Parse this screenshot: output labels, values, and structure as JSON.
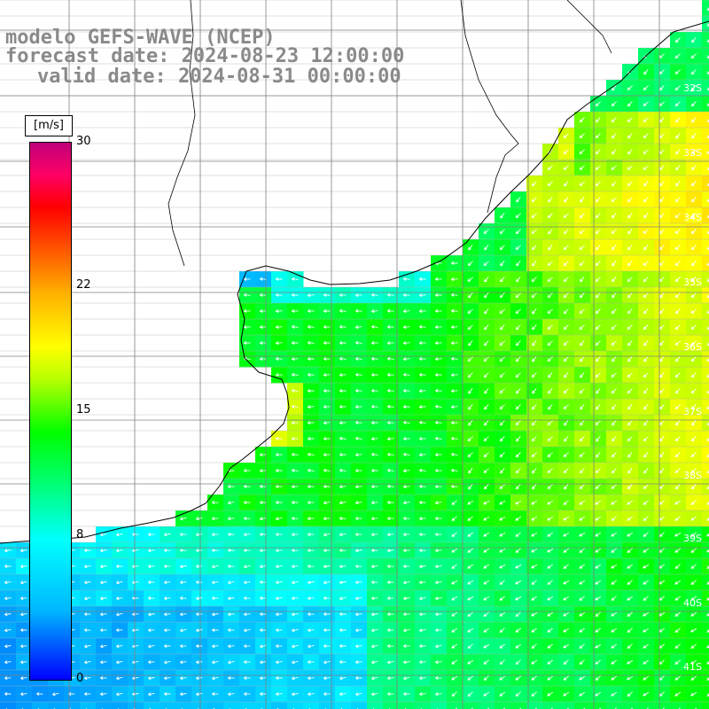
{
  "title": {
    "model": "modelo GEFS-WAVE (NCEP)",
    "forecast": "forecast date: 2024-08-23 12:00:00",
    "valid": "valid date: 2024-08-31 00:00:00"
  },
  "colorbar": {
    "units": "[m/s]",
    "ticks": [
      {
        "label": "30",
        "value": 30
      },
      {
        "label": "22",
        "value": 22
      },
      {
        "label": "15",
        "value": 15
      },
      {
        "label": "8",
        "value": 8
      },
      {
        "label": "0",
        "value": 0
      }
    ],
    "range": [
      0,
      30
    ],
    "colors": [
      "#0000ff",
      "#00b8ff",
      "#00ffff",
      "#00ff7a",
      "#00ff00",
      "#b8ff00",
      "#ffff00",
      "#ffb000",
      "#ff4000",
      "#ff0000",
      "#ff0066",
      "#c0007a"
    ]
  },
  "latitude_labels": [
    "32S",
    "33S",
    "34S",
    "35S",
    "36S",
    "37S",
    "38S",
    "39S",
    "40S",
    "41S"
  ],
  "field": "wind speed [m/s] with wind-direction arrows over the ocean"
}
